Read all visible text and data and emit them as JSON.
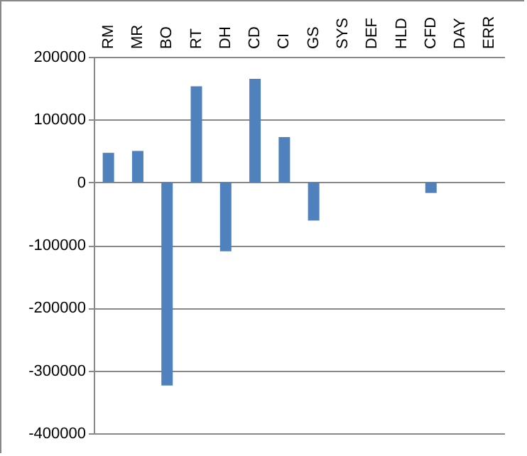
{
  "chart_data": {
    "type": "bar",
    "categories": [
      "RM",
      "MR",
      "BO",
      "RT",
      "DH",
      "CD",
      "CI",
      "GS",
      "SYS",
      "DEF",
      "HLD",
      "CFD",
      "DAY",
      "ERR"
    ],
    "values": [
      47000,
      50000,
      -324000,
      153000,
      -110000,
      165000,
      72000,
      -61000,
      0,
      0,
      0,
      -17000,
      0,
      0
    ],
    "color": "#4f81bd",
    "ylim": [
      -400000,
      200000
    ],
    "yticks": [
      -400000,
      -300000,
      -200000,
      -100000,
      0,
      100000,
      200000
    ],
    "grid": "y"
  }
}
